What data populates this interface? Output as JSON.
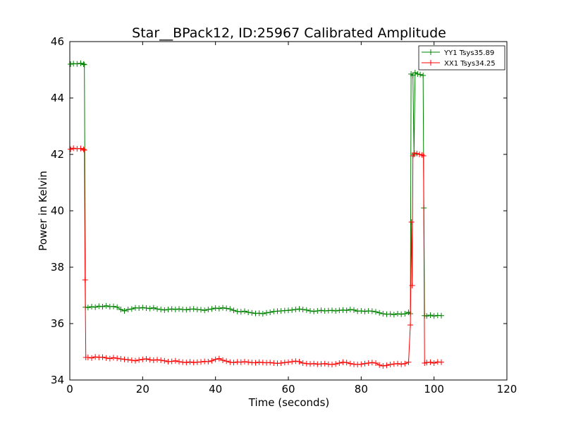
{
  "chart_data": {
    "type": "line",
    "title": "Star__BPack12, ID:25967 Calibrated Amplitude",
    "xlabel": "Time (seconds)",
    "ylabel": "Power in Kelvin",
    "xlim": [
      0,
      120
    ],
    "ylim": [
      34,
      46
    ],
    "xticks": [
      0,
      20,
      40,
      60,
      80,
      100,
      120
    ],
    "yticks": [
      34,
      36,
      38,
      40,
      42,
      44,
      46
    ],
    "grid": false,
    "legend_position": "top-right",
    "marker": "+",
    "series": [
      {
        "name": "YY1 Tsys35.89",
        "color": "#008000",
        "points": [
          [
            0.2,
            45.2
          ],
          [
            1.0,
            45.22
          ],
          [
            2.0,
            45.21
          ],
          [
            3.0,
            45.23
          ],
          [
            3.8,
            45.2
          ],
          [
            4.0,
            45.18
          ],
          [
            4.3,
            36.58
          ],
          [
            5,
            36.57
          ],
          [
            6,
            36.6
          ],
          [
            7,
            36.58
          ],
          [
            8,
            36.62
          ],
          [
            9,
            36.6
          ],
          [
            10,
            36.63
          ],
          [
            11,
            36.6
          ],
          [
            12,
            36.61
          ],
          [
            13,
            36.58
          ],
          [
            14,
            36.5
          ],
          [
            15,
            36.45
          ],
          [
            16,
            36.5
          ],
          [
            17,
            36.52
          ],
          [
            18,
            36.56
          ],
          [
            19,
            36.55
          ],
          [
            20,
            36.57
          ],
          [
            21,
            36.55
          ],
          [
            22,
            36.53
          ],
          [
            23,
            36.56
          ],
          [
            24,
            36.52
          ],
          [
            25,
            36.5
          ],
          [
            26,
            36.48
          ],
          [
            27,
            36.5
          ],
          [
            28,
            36.52
          ],
          [
            29,
            36.5
          ],
          [
            30,
            36.52
          ],
          [
            31,
            36.5
          ],
          [
            32,
            36.49
          ],
          [
            33,
            36.51
          ],
          [
            34,
            36.52
          ],
          [
            35,
            36.5
          ],
          [
            36,
            36.49
          ],
          [
            37,
            36.47
          ],
          [
            38,
            36.5
          ],
          [
            39,
            36.52
          ],
          [
            40,
            36.55
          ],
          [
            41,
            36.53
          ],
          [
            42,
            36.56
          ],
          [
            43,
            36.54
          ],
          [
            44,
            36.52
          ],
          [
            45,
            36.47
          ],
          [
            46,
            36.43
          ],
          [
            47,
            36.42
          ],
          [
            48,
            36.44
          ],
          [
            49,
            36.4
          ],
          [
            50,
            36.38
          ],
          [
            51,
            36.36
          ],
          [
            52,
            36.37
          ],
          [
            53,
            36.35
          ],
          [
            54,
            36.38
          ],
          [
            55,
            36.4
          ],
          [
            56,
            36.43
          ],
          [
            57,
            36.44
          ],
          [
            58,
            36.45
          ],
          [
            59,
            36.46
          ],
          [
            60,
            36.47
          ],
          [
            61,
            36.48
          ],
          [
            62,
            36.5
          ],
          [
            63,
            36.52
          ],
          [
            64,
            36.5
          ],
          [
            65,
            36.48
          ],
          [
            66,
            36.45
          ],
          [
            67,
            36.43
          ],
          [
            68,
            36.45
          ],
          [
            69,
            36.47
          ],
          [
            70,
            36.45
          ],
          [
            71,
            36.46
          ],
          [
            72,
            36.47
          ],
          [
            73,
            36.45
          ],
          [
            74,
            36.47
          ],
          [
            75,
            36.48
          ],
          [
            76,
            36.47
          ],
          [
            77,
            36.5
          ],
          [
            78,
            36.48
          ],
          [
            79,
            36.44
          ],
          [
            80,
            36.45
          ],
          [
            81,
            36.43
          ],
          [
            82,
            36.45
          ],
          [
            83,
            36.44
          ],
          [
            84,
            36.42
          ],
          [
            85,
            36.38
          ],
          [
            86,
            36.35
          ],
          [
            87,
            36.33
          ],
          [
            88,
            36.34
          ],
          [
            89,
            36.32
          ],
          [
            90,
            36.35
          ],
          [
            91,
            36.33
          ],
          [
            92,
            36.35
          ],
          [
            93,
            36.4
          ],
          [
            93.5,
            36.35
          ],
          [
            93.7,
            44.85
          ],
          [
            94.2,
            44.8
          ],
          [
            94.5,
            42.0
          ],
          [
            94.8,
            44.9
          ],
          [
            95.5,
            44.85
          ],
          [
            96.2,
            44.83
          ],
          [
            97.0,
            44.8
          ],
          [
            97.2,
            40.1
          ],
          [
            97.4,
            36.28
          ],
          [
            98,
            36.27
          ],
          [
            99,
            36.3
          ],
          [
            100,
            36.27
          ],
          [
            101,
            36.29
          ],
          [
            102,
            36.28
          ]
        ]
      },
      {
        "name": "XX1 Tsys34.25",
        "color": "#ff0000",
        "points": [
          [
            0.2,
            42.18
          ],
          [
            1.0,
            42.22
          ],
          [
            2.0,
            42.2
          ],
          [
            3.0,
            42.21
          ],
          [
            3.8,
            42.18
          ],
          [
            4.0,
            42.15
          ],
          [
            4.2,
            37.55
          ],
          [
            4.4,
            34.8
          ],
          [
            5,
            34.8
          ],
          [
            6,
            34.78
          ],
          [
            7,
            34.82
          ],
          [
            8,
            34.8
          ],
          [
            9,
            34.81
          ],
          [
            10,
            34.78
          ],
          [
            11,
            34.76
          ],
          [
            12,
            34.79
          ],
          [
            13,
            34.77
          ],
          [
            14,
            34.75
          ],
          [
            15,
            34.73
          ],
          [
            16,
            34.72
          ],
          [
            17,
            34.7
          ],
          [
            18,
            34.68
          ],
          [
            19,
            34.71
          ],
          [
            20,
            34.73
          ],
          [
            21,
            34.75
          ],
          [
            22,
            34.72
          ],
          [
            23,
            34.7
          ],
          [
            24,
            34.72
          ],
          [
            25,
            34.7
          ],
          [
            26,
            34.68
          ],
          [
            27,
            34.65
          ],
          [
            28,
            34.66
          ],
          [
            29,
            34.68
          ],
          [
            30,
            34.65
          ],
          [
            31,
            34.63
          ],
          [
            32,
            34.62
          ],
          [
            33,
            34.64
          ],
          [
            34,
            34.62
          ],
          [
            35,
            34.63
          ],
          [
            36,
            34.64
          ],
          [
            37,
            34.66
          ],
          [
            38,
            34.65
          ],
          [
            39,
            34.68
          ],
          [
            40,
            34.73
          ],
          [
            41,
            34.76
          ],
          [
            42,
            34.7
          ],
          [
            43,
            34.67
          ],
          [
            44,
            34.63
          ],
          [
            45,
            34.62
          ],
          [
            46,
            34.64
          ],
          [
            47,
            34.63
          ],
          [
            48,
            34.65
          ],
          [
            49,
            34.63
          ],
          [
            50,
            34.62
          ],
          [
            51,
            34.61
          ],
          [
            52,
            34.63
          ],
          [
            53,
            34.62
          ],
          [
            54,
            34.61
          ],
          [
            55,
            34.62
          ],
          [
            56,
            34.6
          ],
          [
            57,
            34.59
          ],
          [
            58,
            34.6
          ],
          [
            59,
            34.62
          ],
          [
            60,
            34.63
          ],
          [
            61,
            34.65
          ],
          [
            62,
            34.67
          ],
          [
            63,
            34.65
          ],
          [
            64,
            34.6
          ],
          [
            65,
            34.58
          ],
          [
            66,
            34.57
          ],
          [
            67,
            34.58
          ],
          [
            68,
            34.56
          ],
          [
            69,
            34.57
          ],
          [
            70,
            34.58
          ],
          [
            71,
            34.56
          ],
          [
            72,
            34.55
          ],
          [
            73,
            34.57
          ],
          [
            74,
            34.6
          ],
          [
            75,
            34.63
          ],
          [
            76,
            34.62
          ],
          [
            77,
            34.58
          ],
          [
            78,
            34.56
          ],
          [
            79,
            34.55
          ],
          [
            80,
            34.56
          ],
          [
            81,
            34.58
          ],
          [
            82,
            34.6
          ],
          [
            83,
            34.62
          ],
          [
            84,
            34.6
          ],
          [
            85,
            34.53
          ],
          [
            86,
            34.5
          ],
          [
            87,
            34.52
          ],
          [
            88,
            34.55
          ],
          [
            89,
            34.57
          ],
          [
            90,
            34.58
          ],
          [
            91,
            34.56
          ],
          [
            92,
            34.58
          ],
          [
            93,
            34.63
          ],
          [
            93.5,
            35.95
          ],
          [
            93.8,
            39.6
          ],
          [
            94.0,
            37.35
          ],
          [
            94.2,
            41.95
          ],
          [
            94.6,
            42.05
          ],
          [
            95.3,
            42.03
          ],
          [
            96.0,
            42.0
          ],
          [
            96.7,
            41.98
          ],
          [
            97.1,
            41.95
          ],
          [
            97.4,
            34.6
          ],
          [
            98,
            34.62
          ],
          [
            99,
            34.63
          ],
          [
            100,
            34.6
          ],
          [
            101,
            34.64
          ],
          [
            102,
            34.63
          ]
        ]
      }
    ]
  }
}
